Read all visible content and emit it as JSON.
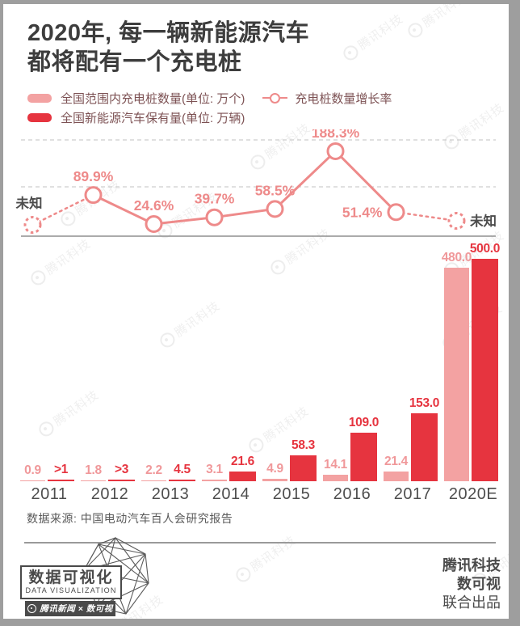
{
  "title": {
    "line1": "2020年, 每一辆新能源汽车",
    "line2": "都将配有一个充电桩"
  },
  "legend": {
    "pink_label": "全国范围内充电桩数量(单位: 万个)",
    "red_label": "全国新能源汽车保有量(单位: 万辆)",
    "line_label": "充电桩数量增长率"
  },
  "colors": {
    "pink": "#F3A2A2",
    "pink_text": "#F0989A",
    "red": "#E6343F",
    "line": "#EE8A8A",
    "grid": "#CDCDCD",
    "axis": "#8F8F8F",
    "dark_text": "#4C4C4C"
  },
  "chart_data": {
    "type": "bar+line",
    "categories": [
      "2011",
      "2012",
      "2013",
      "2014",
      "2015",
      "2016",
      "2017",
      "2020E"
    ],
    "series": [
      {
        "name": "全国范围内充电桩数量(单位: 万个)",
        "color_key": "pink",
        "values": [
          0.9,
          1.8,
          2.2,
          3.1,
          4.9,
          14.1,
          21.4,
          480.0
        ],
        "labels": [
          "0.9",
          "1.8",
          "2.2",
          "3.1",
          "4.9",
          "14.1",
          "21.4",
          "480.0"
        ]
      },
      {
        "name": "全国新能源汽车保有量(单位: 万辆)",
        "color_key": "red",
        "values": [
          1,
          3,
          4.5,
          21.6,
          58.3,
          109.0,
          153.0,
          500.0
        ],
        "labels": [
          ">1",
          ">3",
          "4.5",
          "21.6",
          "58.3",
          "109.0",
          "153.0",
          "500.0"
        ]
      }
    ],
    "line": {
      "name": "充电桩数量增长率",
      "unit": "%",
      "values": [
        null,
        89.9,
        24.6,
        39.7,
        58.5,
        188.3,
        51.4,
        null
      ],
      "labels": [
        "未知",
        "89.9%",
        "24.6%",
        "39.7%",
        "58.5%",
        "188.3%",
        "51.4%",
        "未知"
      ],
      "unknown_label": "未知"
    },
    "grid": "dashed-horizontal",
    "legend_position": "top"
  },
  "source": "数据来源: 中国电动汽车百人会研究报告",
  "footer": {
    "logo_title": "数据可视化",
    "logo_subtitle": "DATA VISUALIZATION",
    "logo_badge": "腾讯新闻 × 数可视",
    "credit_line1": "腾讯科技",
    "credit_line2": "数可视",
    "credit_line3": "联合出品"
  },
  "branding": {
    "watermark": "腾讯科技"
  }
}
